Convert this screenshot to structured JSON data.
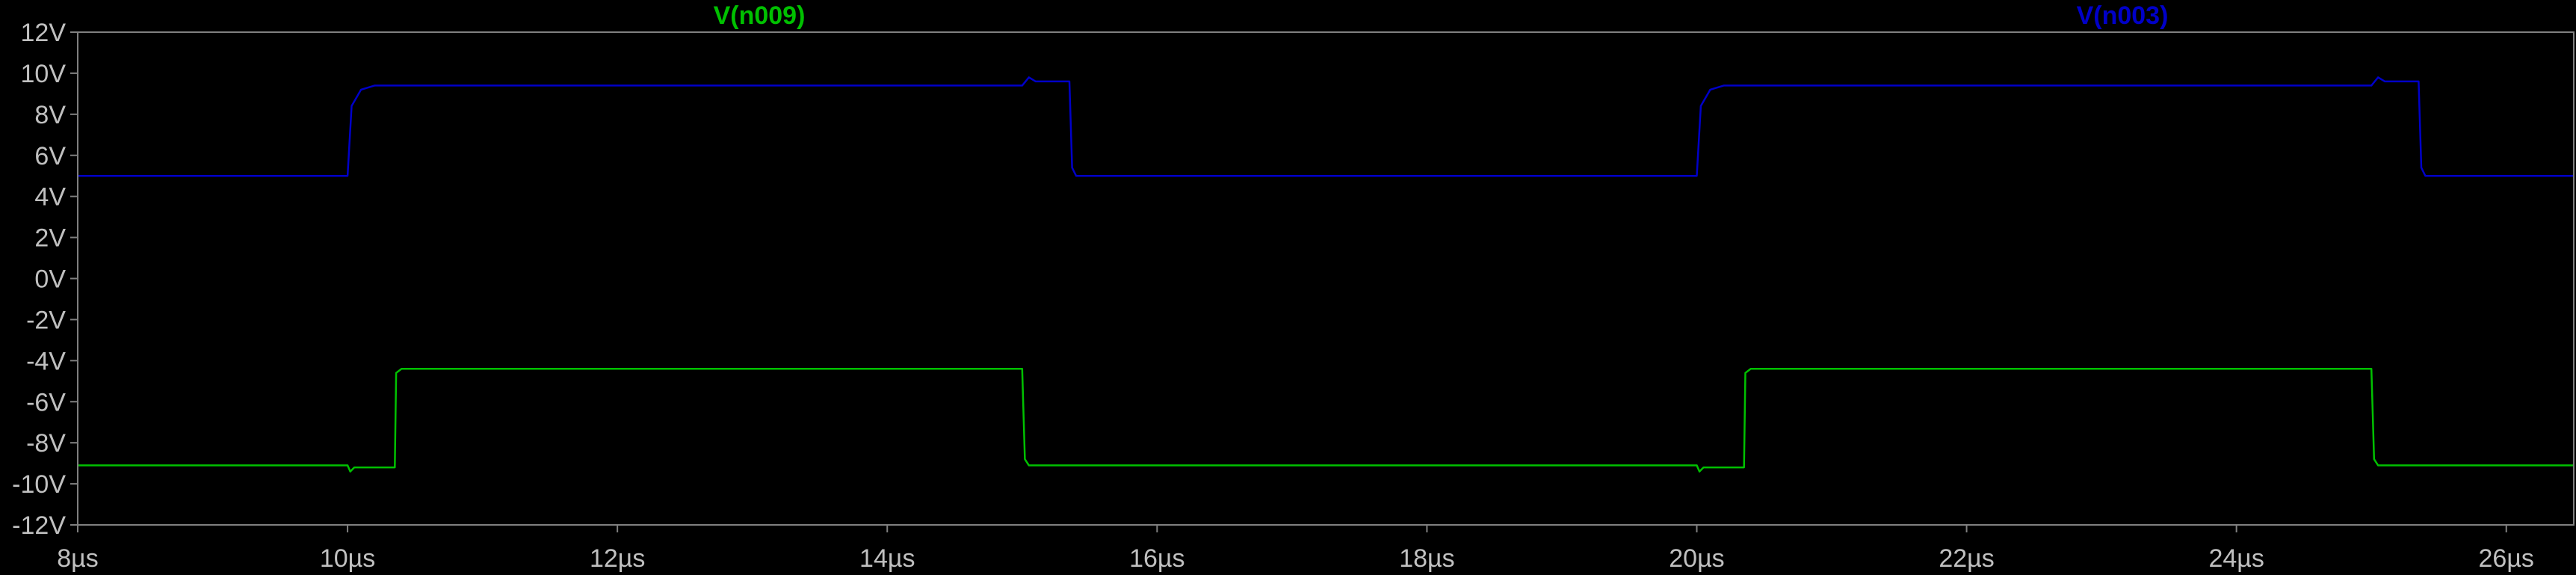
{
  "chart_data": {
    "type": "line",
    "title": "",
    "xlabel": "",
    "ylabel": "",
    "xlim": [
      8,
      26.5
    ],
    "ylim": [
      -12,
      12
    ],
    "x_ticks": [
      8,
      10,
      12,
      14,
      16,
      18,
      20,
      22,
      24,
      26
    ],
    "x_tick_labels": [
      "8µs",
      "10µs",
      "12µs",
      "14µs",
      "16µs",
      "18µs",
      "20µs",
      "22µs",
      "24µs",
      "26µs"
    ],
    "y_ticks": [
      12,
      10,
      8,
      6,
      4,
      2,
      0,
      -2,
      -4,
      -6,
      -8,
      -10,
      -12
    ],
    "y_tick_labels": [
      "12V",
      "10V",
      "8V",
      "6V",
      "4V",
      "2V",
      "0V",
      "-2V",
      "-4V",
      "-6V",
      "-8V",
      "-10V",
      "-12V"
    ],
    "grid": false,
    "background": "#000000",
    "axis_color": "#808080",
    "tick_label_color": "#c0c0c0",
    "series": [
      {
        "name": "V(n009)",
        "color": "#00c000",
        "x": [
          8.0,
          10.0,
          10.02,
          10.05,
          10.1,
          10.35,
          10.36,
          10.4,
          14.0,
          15.0,
          15.02,
          15.05,
          15.1,
          15.5,
          20.0,
          20.02,
          20.05,
          20.1,
          20.35,
          20.36,
          20.4,
          25.0,
          25.02,
          25.05,
          25.1,
          25.5,
          26.5
        ],
        "y": [
          -9.1,
          -9.1,
          -9.4,
          -9.2,
          -9.2,
          -9.2,
          -4.6,
          -4.4,
          -4.4,
          -4.4,
          -8.8,
          -9.1,
          -9.1,
          -9.1,
          -9.1,
          -9.4,
          -9.2,
          -9.2,
          -9.2,
          -4.6,
          -4.4,
          -4.4,
          -8.8,
          -9.1,
          -9.1,
          -9.1,
          -9.1
        ]
      },
      {
        "name": "V(n003)",
        "color": "#0000c8",
        "x": [
          8.0,
          10.0,
          10.03,
          10.1,
          10.2,
          15.0,
          15.05,
          15.1,
          15.35,
          15.37,
          15.4,
          20.0,
          20.03,
          20.1,
          20.2,
          25.0,
          25.05,
          25.1,
          25.35,
          25.37,
          25.4,
          26.5
        ],
        "y": [
          5.0,
          5.0,
          8.4,
          9.2,
          9.4,
          9.4,
          9.8,
          9.6,
          9.6,
          5.4,
          5.0,
          5.0,
          8.4,
          9.2,
          9.4,
          9.4,
          9.8,
          9.6,
          9.6,
          5.4,
          5.0,
          5.0
        ]
      }
    ]
  }
}
